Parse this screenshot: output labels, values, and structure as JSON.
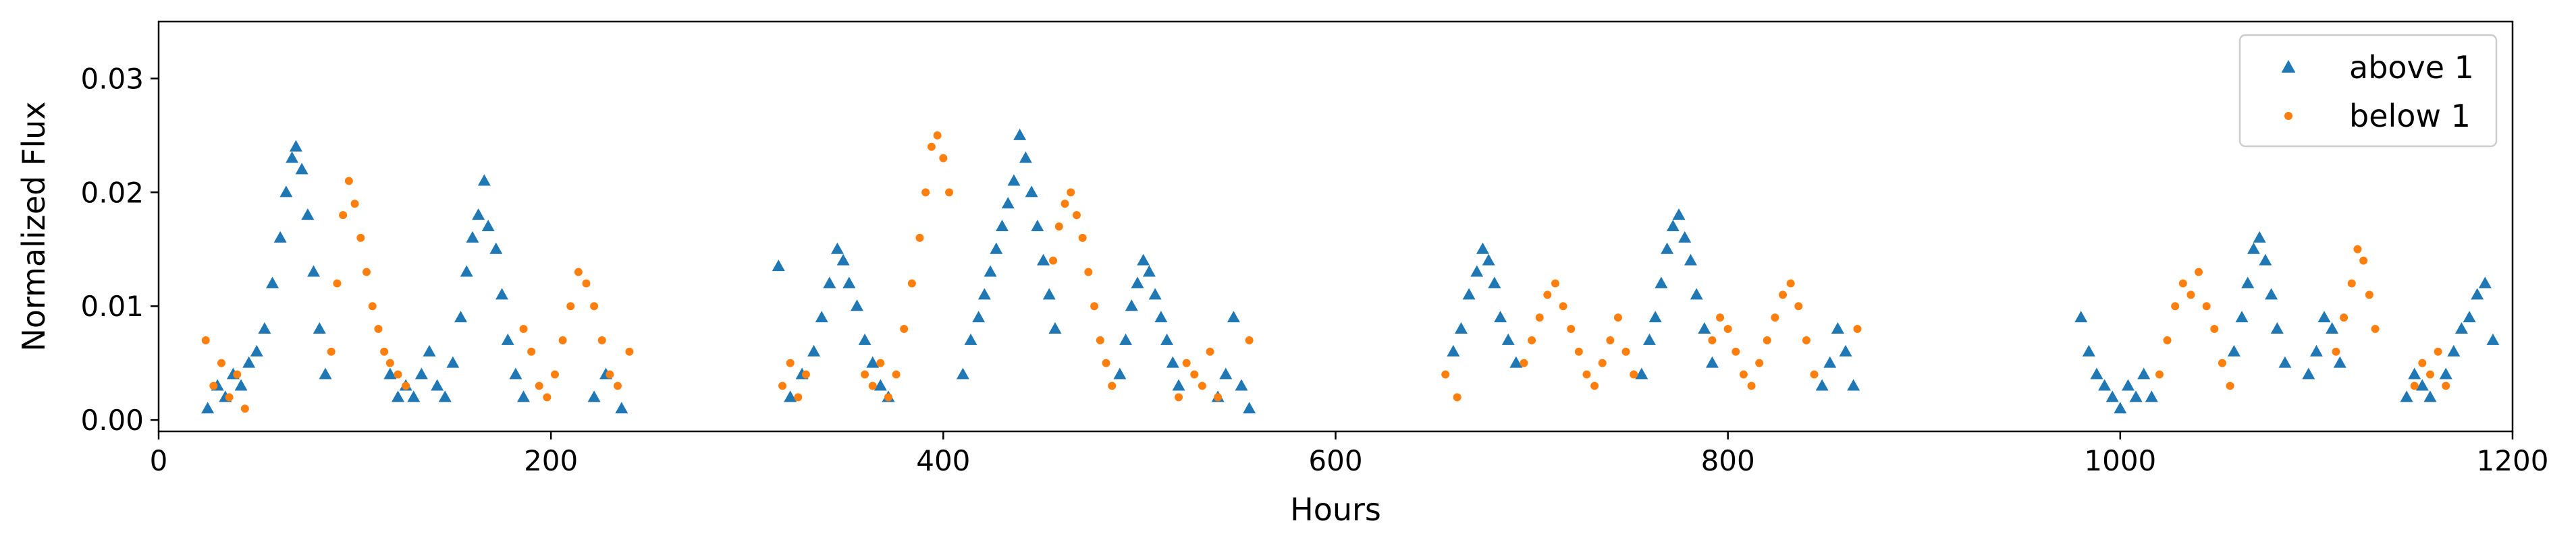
{
  "chart_data": {
    "type": "scatter",
    "xlabel": "Hours",
    "ylabel": "Normalized Flux",
    "xlim": [
      0,
      1200
    ],
    "ylim": [
      -0.001,
      0.035
    ],
    "xticks": [
      0,
      200,
      400,
      600,
      800,
      1000,
      1200
    ],
    "yticks": [
      0.0,
      0.01,
      0.02,
      0.03
    ],
    "xtick_labels": [
      "0",
      "200",
      "400",
      "600",
      "800",
      "1000",
      "1200"
    ],
    "ytick_labels": [
      "0.00",
      "0.01",
      "0.02",
      "0.03"
    ],
    "grid": false,
    "legend": "top-right",
    "series": [
      {
        "name": "above 1",
        "marker": "triangle",
        "color": "#1f77b4",
        "points": [
          [
            25,
            0.001
          ],
          [
            30,
            0.003
          ],
          [
            34,
            0.002
          ],
          [
            38,
            0.004
          ],
          [
            42,
            0.003
          ],
          [
            46,
            0.005
          ],
          [
            50,
            0.006
          ],
          [
            54,
            0.008
          ],
          [
            58,
            0.012
          ],
          [
            62,
            0.016
          ],
          [
            65,
            0.02
          ],
          [
            68,
            0.023
          ],
          [
            70,
            0.024
          ],
          [
            73,
            0.022
          ],
          [
            76,
            0.018
          ],
          [
            79,
            0.013
          ],
          [
            82,
            0.008
          ],
          [
            85,
            0.004
          ],
          [
            118,
            0.004
          ],
          [
            122,
            0.002
          ],
          [
            126,
            0.003
          ],
          [
            130,
            0.002
          ],
          [
            134,
            0.004
          ],
          [
            138,
            0.006
          ],
          [
            142,
            0.003
          ],
          [
            146,
            0.002
          ],
          [
            150,
            0.005
          ],
          [
            154,
            0.009
          ],
          [
            157,
            0.013
          ],
          [
            160,
            0.016
          ],
          [
            163,
            0.018
          ],
          [
            166,
            0.021
          ],
          [
            168,
            0.017
          ],
          [
            172,
            0.015
          ],
          [
            175,
            0.011
          ],
          [
            178,
            0.007
          ],
          [
            182,
            0.004
          ],
          [
            186,
            0.002
          ],
          [
            222,
            0.002
          ],
          [
            228,
            0.004
          ],
          [
            236,
            0.001
          ],
          [
            316,
            0.0135
          ],
          [
            322,
            0.002
          ],
          [
            328,
            0.004
          ],
          [
            334,
            0.006
          ],
          [
            338,
            0.009
          ],
          [
            342,
            0.012
          ],
          [
            346,
            0.015
          ],
          [
            349,
            0.014
          ],
          [
            352,
            0.012
          ],
          [
            356,
            0.01
          ],
          [
            360,
            0.007
          ],
          [
            364,
            0.005
          ],
          [
            368,
            0.003
          ],
          [
            372,
            0.002
          ],
          [
            410,
            0.004
          ],
          [
            414,
            0.007
          ],
          [
            418,
            0.009
          ],
          [
            421,
            0.011
          ],
          [
            424,
            0.013
          ],
          [
            427,
            0.015
          ],
          [
            430,
            0.017
          ],
          [
            433,
            0.019
          ],
          [
            436,
            0.021
          ],
          [
            439,
            0.025
          ],
          [
            442,
            0.023
          ],
          [
            445,
            0.02
          ],
          [
            448,
            0.017
          ],
          [
            451,
            0.014
          ],
          [
            454,
            0.011
          ],
          [
            457,
            0.008
          ],
          [
            490,
            0.004
          ],
          [
            493,
            0.007
          ],
          [
            496,
            0.01
          ],
          [
            499,
            0.012
          ],
          [
            502,
            0.014
          ],
          [
            505,
            0.013
          ],
          [
            508,
            0.011
          ],
          [
            511,
            0.009
          ],
          [
            514,
            0.007
          ],
          [
            517,
            0.005
          ],
          [
            520,
            0.003
          ],
          [
            540,
            0.002
          ],
          [
            544,
            0.004
          ],
          [
            548,
            0.009
          ],
          [
            552,
            0.003
          ],
          [
            556,
            0.001
          ],
          [
            660,
            0.006
          ],
          [
            664,
            0.008
          ],
          [
            668,
            0.011
          ],
          [
            672,
            0.013
          ],
          [
            675,
            0.015
          ],
          [
            678,
            0.014
          ],
          [
            681,
            0.012
          ],
          [
            684,
            0.009
          ],
          [
            688,
            0.007
          ],
          [
            692,
            0.005
          ],
          [
            756,
            0.004
          ],
          [
            760,
            0.007
          ],
          [
            763,
            0.009
          ],
          [
            766,
            0.012
          ],
          [
            769,
            0.015
          ],
          [
            772,
            0.017
          ],
          [
            775,
            0.018
          ],
          [
            778,
            0.016
          ],
          [
            781,
            0.014
          ],
          [
            784,
            0.011
          ],
          [
            788,
            0.008
          ],
          [
            792,
            0.005
          ],
          [
            848,
            0.003
          ],
          [
            852,
            0.005
          ],
          [
            856,
            0.008
          ],
          [
            860,
            0.006
          ],
          [
            864,
            0.003
          ],
          [
            980,
            0.009
          ],
          [
            984,
            0.006
          ],
          [
            988,
            0.004
          ],
          [
            992,
            0.003
          ],
          [
            996,
            0.002
          ],
          [
            1000,
            0.001
          ],
          [
            1004,
            0.003
          ],
          [
            1008,
            0.002
          ],
          [
            1012,
            0.004
          ],
          [
            1016,
            0.002
          ],
          [
            1058,
            0.006
          ],
          [
            1062,
            0.009
          ],
          [
            1065,
            0.012
          ],
          [
            1068,
            0.015
          ],
          [
            1071,
            0.016
          ],
          [
            1074,
            0.014
          ],
          [
            1077,
            0.011
          ],
          [
            1080,
            0.008
          ],
          [
            1084,
            0.005
          ],
          [
            1096,
            0.004
          ],
          [
            1100,
            0.006
          ],
          [
            1104,
            0.009
          ],
          [
            1108,
            0.008
          ],
          [
            1112,
            0.005
          ],
          [
            1146,
            0.002
          ],
          [
            1150,
            0.004
          ],
          [
            1154,
            0.003
          ],
          [
            1158,
            0.002
          ],
          [
            1166,
            0.004
          ],
          [
            1170,
            0.006
          ],
          [
            1174,
            0.008
          ],
          [
            1178,
            0.009
          ],
          [
            1182,
            0.011
          ],
          [
            1186,
            0.012
          ],
          [
            1190,
            0.007
          ]
        ]
      },
      {
        "name": "below 1",
        "marker": "dot",
        "color": "#ff7f0e",
        "points": [
          [
            24,
            0.007
          ],
          [
            28,
            0.003
          ],
          [
            32,
            0.005
          ],
          [
            36,
            0.002
          ],
          [
            40,
            0.004
          ],
          [
            44,
            0.001
          ],
          [
            88,
            0.006
          ],
          [
            91,
            0.012
          ],
          [
            94,
            0.018
          ],
          [
            97,
            0.021
          ],
          [
            100,
            0.019
          ],
          [
            103,
            0.016
          ],
          [
            106,
            0.013
          ],
          [
            109,
            0.01
          ],
          [
            112,
            0.008
          ],
          [
            115,
            0.006
          ],
          [
            118,
            0.005
          ],
          [
            122,
            0.004
          ],
          [
            126,
            0.003
          ],
          [
            186,
            0.008
          ],
          [
            190,
            0.006
          ],
          [
            194,
            0.003
          ],
          [
            198,
            0.002
          ],
          [
            202,
            0.004
          ],
          [
            206,
            0.007
          ],
          [
            210,
            0.01
          ],
          [
            214,
            0.013
          ],
          [
            218,
            0.012
          ],
          [
            222,
            0.01
          ],
          [
            226,
            0.007
          ],
          [
            230,
            0.004
          ],
          [
            234,
            0.003
          ],
          [
            240,
            0.006
          ],
          [
            318,
            0.003
          ],
          [
            322,
            0.005
          ],
          [
            326,
            0.002
          ],
          [
            330,
            0.004
          ],
          [
            360,
            0.004
          ],
          [
            364,
            0.003
          ],
          [
            368,
            0.005
          ],
          [
            372,
            0.002
          ],
          [
            376,
            0.004
          ],
          [
            380,
            0.008
          ],
          [
            384,
            0.012
          ],
          [
            388,
            0.016
          ],
          [
            391,
            0.02
          ],
          [
            394,
            0.024
          ],
          [
            397,
            0.025
          ],
          [
            400,
            0.023
          ],
          [
            403,
            0.02
          ],
          [
            456,
            0.014
          ],
          [
            459,
            0.017
          ],
          [
            462,
            0.019
          ],
          [
            465,
            0.02
          ],
          [
            468,
            0.018
          ],
          [
            471,
            0.016
          ],
          [
            474,
            0.013
          ],
          [
            477,
            0.01
          ],
          [
            480,
            0.007
          ],
          [
            483,
            0.005
          ],
          [
            486,
            0.003
          ],
          [
            520,
            0.002
          ],
          [
            524,
            0.005
          ],
          [
            528,
            0.004
          ],
          [
            532,
            0.003
          ],
          [
            536,
            0.006
          ],
          [
            540,
            0.002
          ],
          [
            556,
            0.007
          ],
          [
            656,
            0.004
          ],
          [
            662,
            0.002
          ],
          [
            696,
            0.005
          ],
          [
            700,
            0.007
          ],
          [
            704,
            0.009
          ],
          [
            708,
            0.011
          ],
          [
            712,
            0.012
          ],
          [
            716,
            0.01
          ],
          [
            720,
            0.008
          ],
          [
            724,
            0.006
          ],
          [
            728,
            0.004
          ],
          [
            732,
            0.003
          ],
          [
            736,
            0.005
          ],
          [
            740,
            0.007
          ],
          [
            744,
            0.009
          ],
          [
            748,
            0.006
          ],
          [
            752,
            0.004
          ],
          [
            792,
            0.007
          ],
          [
            796,
            0.009
          ],
          [
            800,
            0.008
          ],
          [
            804,
            0.006
          ],
          [
            808,
            0.004
          ],
          [
            812,
            0.003
          ],
          [
            816,
            0.005
          ],
          [
            820,
            0.007
          ],
          [
            824,
            0.009
          ],
          [
            828,
            0.011
          ],
          [
            832,
            0.012
          ],
          [
            836,
            0.01
          ],
          [
            840,
            0.007
          ],
          [
            844,
            0.004
          ],
          [
            866,
            0.008
          ],
          [
            1020,
            0.004
          ],
          [
            1024,
            0.007
          ],
          [
            1028,
            0.01
          ],
          [
            1032,
            0.012
          ],
          [
            1036,
            0.011
          ],
          [
            1040,
            0.013
          ],
          [
            1044,
            0.01
          ],
          [
            1048,
            0.008
          ],
          [
            1052,
            0.005
          ],
          [
            1056,
            0.003
          ],
          [
            1110,
            0.006
          ],
          [
            1114,
            0.009
          ],
          [
            1118,
            0.012
          ],
          [
            1121,
            0.015
          ],
          [
            1124,
            0.014
          ],
          [
            1127,
            0.011
          ],
          [
            1130,
            0.008
          ],
          [
            1150,
            0.003
          ],
          [
            1154,
            0.005
          ],
          [
            1158,
            0.004
          ],
          [
            1162,
            0.006
          ],
          [
            1166,
            0.003
          ]
        ]
      }
    ]
  }
}
